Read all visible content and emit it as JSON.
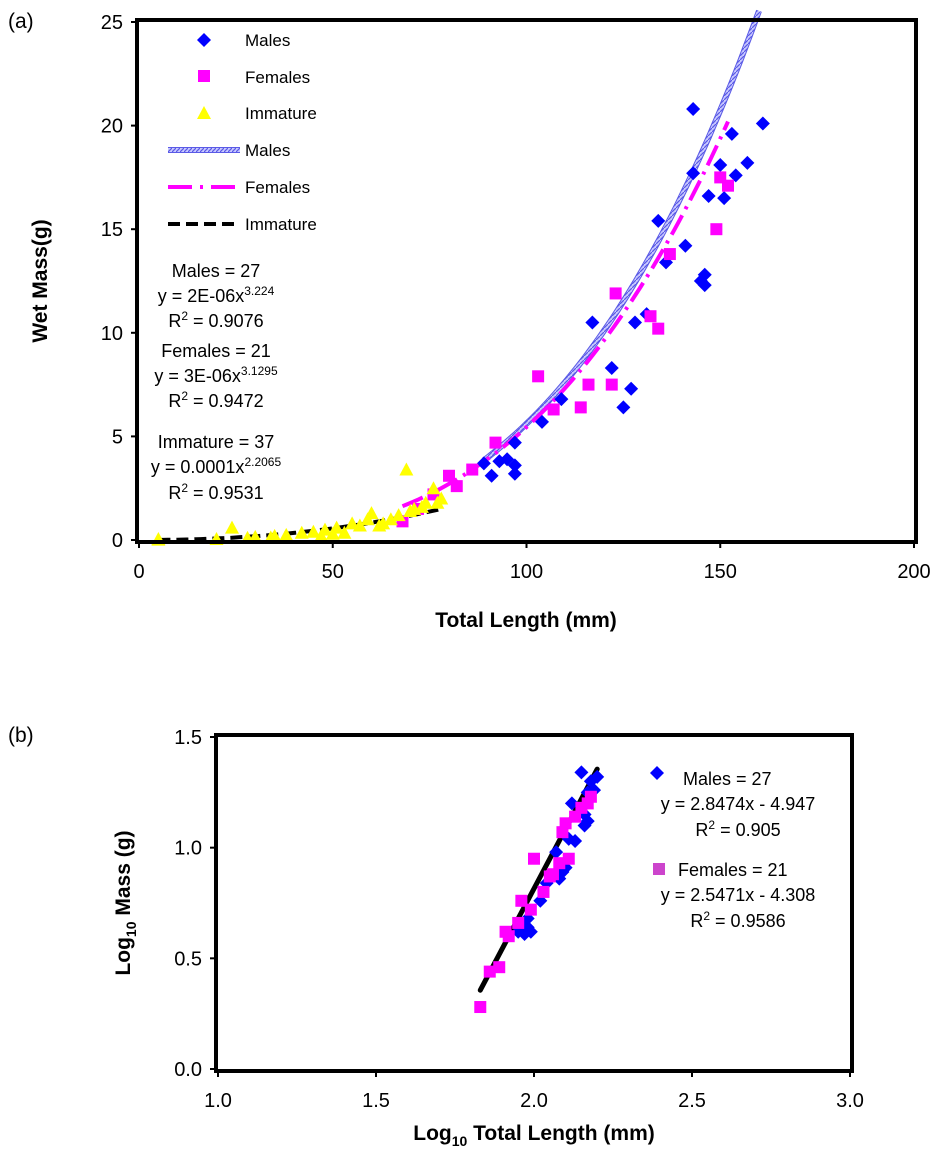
{
  "chart_data": [
    {
      "panel_label": "(a)",
      "type": "scatter",
      "xlabel": "Total Length (mm)",
      "ylabel": "Wet Mass(g)",
      "xlim": [
        0,
        200
      ],
      "ylim": [
        0,
        25
      ],
      "x_ticks": [
        "0",
        "50",
        "100",
        "150",
        "200"
      ],
      "y_ticks": [
        "0",
        "5",
        "10",
        "15",
        "20",
        "25"
      ],
      "grid": false,
      "legend_position": "top-left",
      "legend": [
        {
          "label": "Males",
          "kind": "marker",
          "marker": "diamond",
          "color": "#0000FF"
        },
        {
          "label": "Females",
          "kind": "marker",
          "marker": "square",
          "color": "#FF00FF"
        },
        {
          "label": "Immature",
          "kind": "marker",
          "marker": "triangle",
          "color": "#FFFF00"
        },
        {
          "label": "Males",
          "kind": "line",
          "style": "hatched",
          "color": "#8C8CF0"
        },
        {
          "label": "Females",
          "kind": "line",
          "style": "dash-dot",
          "color": "#FF00FF"
        },
        {
          "label": "Immature",
          "kind": "line",
          "style": "dashed",
          "color": "#000000"
        }
      ],
      "annotations": [
        {
          "count": "Males = 27",
          "eq_base": "y = 2E-06x",
          "eq_exp": "3.224",
          "r2_value": " = 0.9076"
        },
        {
          "count": "Females = 21",
          "eq_base": "y = 3E-06x",
          "eq_exp": "3.1295",
          "r2_value": " = 0.9472"
        },
        {
          "count": "Immature = 37",
          "eq_base": "y = 0.0001x",
          "eq_exp": "2.2065",
          "r2_value": " = 0.9531"
        }
      ],
      "series": [
        {
          "name": "Males",
          "marker": "diamond",
          "color": "#0000FF",
          "points": [
            [
              89,
              3.7
            ],
            [
              91,
              3.1
            ],
            [
              93,
              3.8
            ],
            [
              95,
              3.9
            ],
            [
              97,
              3.2
            ],
            [
              97,
              3.6
            ],
            [
              97,
              4.7
            ],
            [
              104,
              5.7
            ],
            [
              109,
              6.8
            ],
            [
              117,
              10.5
            ],
            [
              122,
              8.3
            ],
            [
              125,
              6.4
            ],
            [
              127,
              7.3
            ],
            [
              128,
              10.5
            ],
            [
              131,
              10.9
            ],
            [
              134,
              15.4
            ],
            [
              136,
              13.4
            ],
            [
              141,
              14.2
            ],
            [
              143,
              20.8
            ],
            [
              143,
              17.7
            ],
            [
              145,
              12.5
            ],
            [
              146,
              12.3
            ],
            [
              146,
              12.8
            ],
            [
              147,
              16.6
            ],
            [
              150,
              18.1
            ],
            [
              151,
              16.5
            ],
            [
              153,
              19.6
            ],
            [
              154,
              17.6
            ],
            [
              157,
              18.2
            ],
            [
              161,
              20.1
            ]
          ]
        },
        {
          "name": "Females",
          "marker": "square",
          "color": "#FF00FF",
          "points": [
            [
              68,
              0.9
            ],
            [
              72,
              1.5
            ],
            [
              76,
              2.2
            ],
            [
              80,
              3.1
            ],
            [
              82,
              2.6
            ],
            [
              86,
              3.4
            ],
            [
              92,
              4.7
            ],
            [
              103,
              7.9
            ],
            [
              107,
              6.3
            ],
            [
              114,
              6.4
            ],
            [
              116,
              7.5
            ],
            [
              122,
              7.5
            ],
            [
              123,
              11.9
            ],
            [
              132,
              10.8
            ],
            [
              134,
              10.2
            ],
            [
              137,
              13.8
            ],
            [
              149,
              15.0
            ],
            [
              150,
              17.5
            ],
            [
              152,
              17.1
            ]
          ]
        },
        {
          "name": "Immature",
          "marker": "triangle",
          "color": "#FFFF00",
          "points": [
            [
              5,
              0.02
            ],
            [
              5,
              0.05
            ],
            [
              20,
              0.05
            ],
            [
              24,
              0.6
            ],
            [
              28,
              0.1
            ],
            [
              30,
              0.15
            ],
            [
              34,
              0.12
            ],
            [
              35,
              0.2
            ],
            [
              38,
              0.25
            ],
            [
              42,
              0.35
            ],
            [
              45,
              0.4
            ],
            [
              47,
              0.2
            ],
            [
              48,
              0.5
            ],
            [
              50,
              0.3
            ],
            [
              51,
              0.6
            ],
            [
              53,
              0.35
            ],
            [
              55,
              0.8
            ],
            [
              57,
              0.7
            ],
            [
              59,
              1.0
            ],
            [
              60,
              1.3
            ],
            [
              62,
              0.7
            ],
            [
              63,
              0.8
            ],
            [
              65,
              1.0
            ],
            [
              67,
              1.2
            ],
            [
              69,
              3.4
            ],
            [
              70,
              1.4
            ],
            [
              71,
              1.5
            ],
            [
              73,
              1.6
            ],
            [
              74,
              1.8
            ],
            [
              76,
              2.5
            ],
            [
              77,
              1.8
            ],
            [
              78,
              2.0
            ]
          ]
        }
      ],
      "fits": [
        {
          "name": "Males",
          "a": 2e-06,
          "b": 3.224,
          "x_range": [
            89,
            160
          ],
          "color": "#8C8CF0",
          "style": "hatched"
        },
        {
          "name": "Females",
          "a": 3e-06,
          "b": 3.1295,
          "x_range": [
            68,
            152
          ],
          "color": "#FF00FF",
          "style": "dash-dot"
        },
        {
          "name": "Immature",
          "a": 0.0001,
          "b": 2.2065,
          "x_range": [
            5,
            78
          ],
          "color": "#000000",
          "style": "dashed"
        }
      ]
    },
    {
      "panel_label": "(b)",
      "type": "scatter",
      "xlabel_base": "Log",
      "xlabel_sub": "10",
      "xlabel_rest": " Total Length (mm)",
      "ylabel_base": "Log",
      "ylabel_sub": "10",
      "ylabel_rest": " Mass (g)",
      "xlim": [
        1.0,
        3.0
      ],
      "ylim": [
        0.0,
        1.5
      ],
      "x_ticks": [
        "1.0",
        "1.5",
        "2.0",
        "2.5",
        "3.0"
      ],
      "y_ticks": [
        "0.0",
        "0.5",
        "1.0",
        "1.5"
      ],
      "grid": false,
      "legend_position": "right",
      "annotations": [
        {
          "count": "Males = 27",
          "eq": "y = 2.8474x - 4.947",
          "r2_value": " = 0.905",
          "marker": "diamond",
          "color": "#0000FF"
        },
        {
          "count": "Females = 21",
          "eq": "y = 2.5471x - 4.308",
          "r2_value": " = 0.9586",
          "marker": "square",
          "color": "#CC44CC"
        }
      ],
      "series": [
        {
          "name": "Males",
          "marker": "diamond",
          "color": "#0000FF",
          "points": [
            [
              1.95,
              0.62
            ],
            [
              1.96,
              0.65
            ],
            [
              1.97,
              0.61
            ],
            [
              1.98,
              0.64
            ],
            [
              1.98,
              0.68
            ],
            [
              1.99,
              0.62
            ],
            [
              2.02,
              0.76
            ],
            [
              2.04,
              0.84
            ],
            [
              2.07,
              0.98
            ],
            [
              2.08,
              0.86
            ],
            [
              2.09,
              0.89
            ],
            [
              2.1,
              0.91
            ],
            [
              2.11,
              1.04
            ],
            [
              2.12,
              1.2
            ],
            [
              2.13,
              1.03
            ],
            [
              2.15,
              1.34
            ],
            [
              2.16,
              1.15
            ],
            [
              2.16,
              1.1
            ],
            [
              2.17,
              1.25
            ],
            [
              2.17,
              1.12
            ],
            [
              2.18,
              1.3
            ],
            [
              2.19,
              1.26
            ],
            [
              2.2,
              1.32
            ]
          ]
        },
        {
          "name": "Females",
          "marker": "square",
          "color": "#FF00FF",
          "points": [
            [
              1.83,
              0.28
            ],
            [
              1.86,
              0.44
            ],
            [
              1.89,
              0.46
            ],
            [
              1.91,
              0.62
            ],
            [
              1.92,
              0.6
            ],
            [
              1.95,
              0.66
            ],
            [
              1.96,
              0.76
            ],
            [
              1.99,
              0.72
            ],
            [
              2.0,
              0.95
            ],
            [
              2.03,
              0.8
            ],
            [
              2.05,
              0.87
            ],
            [
              2.06,
              0.88
            ],
            [
              2.08,
              0.93
            ],
            [
              2.09,
              1.07
            ],
            [
              2.1,
              1.11
            ],
            [
              2.11,
              0.95
            ],
            [
              2.13,
              1.14
            ],
            [
              2.15,
              1.18
            ],
            [
              2.17,
              1.2
            ],
            [
              2.18,
              1.23
            ]
          ]
        }
      ],
      "fits": [
        {
          "name": "Combined",
          "slope": 2.7,
          "intercept": -4.585,
          "x_range": [
            1.83,
            2.2
          ],
          "color": "#000000"
        }
      ]
    }
  ]
}
